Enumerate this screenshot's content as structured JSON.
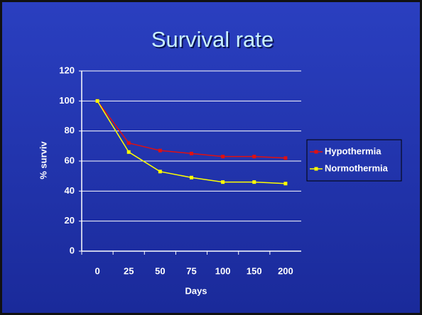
{
  "chart_data": {
    "type": "line",
    "title": "Survival rate",
    "x_label": "Days",
    "y_label": "% surviv",
    "categories": [
      "0",
      "25",
      "50",
      "75",
      "100",
      "150",
      "200"
    ],
    "series": [
      {
        "name": "Hypothermia",
        "color": "#e01010",
        "values": [
          100,
          72,
          67,
          65,
          63,
          63,
          62
        ]
      },
      {
        "name": "Normothermia",
        "color": "#ffff00",
        "values": [
          100,
          66,
          53,
          49,
          46,
          46,
          45
        ]
      }
    ],
    "ylim": [
      0,
      120
    ],
    "yticks": [
      0,
      20,
      40,
      60,
      80,
      100,
      120
    ],
    "grid": true,
    "legend": "right"
  }
}
